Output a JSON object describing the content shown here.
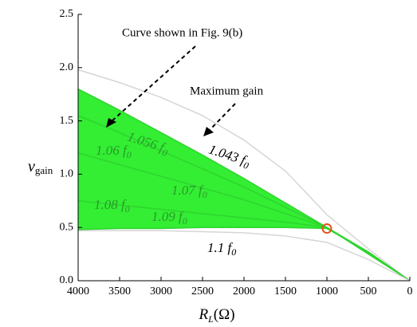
{
  "chart_data": {
    "type": "line",
    "xlabel": "R",
    "xlabel_sub": "L",
    "xlabel_unit": "(Ω)",
    "ylabel": "v",
    "ylabel_sub": "gain",
    "xlim": [
      4000,
      0
    ],
    "ylim": [
      0,
      2.5
    ],
    "xticks": [
      4000,
      3500,
      3000,
      2500,
      2000,
      1500,
      1000,
      500,
      0
    ],
    "yticks": [
      {
        "value": 0,
        "label": "0.0"
      },
      0.5,
      {
        "value": 1,
        "label": "1.0"
      },
      1.5,
      {
        "value": 2,
        "label": "2.0"
      },
      2.5
    ],
    "x": [
      4000,
      3500,
      3000,
      2500,
      2000,
      1500,
      1000,
      500,
      0
    ],
    "fill_color": "#33ee33",
    "series": [
      {
        "name": "1.043 f",
        "name_sub": "0",
        "color": "#d6d6d6",
        "values": [
          1.98,
          1.86,
          1.72,
          1.55,
          1.32,
          1.03,
          0.62,
          0.3,
          0
        ]
      },
      {
        "name": "1.056 f",
        "name_sub": "0",
        "color": "#2fd42f",
        "values": [
          1.8,
          1.6,
          1.39,
          1.18,
          0.96,
          0.73,
          0.5,
          0.25,
          0
        ]
      },
      {
        "name": "1.06 f",
        "name_sub": "0",
        "color": "#2fd42f",
        "values": [
          1.55,
          1.39,
          1.22,
          1.05,
          0.88,
          0.69,
          0.5,
          0.26,
          0
        ]
      },
      {
        "name": "1.07 f",
        "name_sub": "0",
        "color": "#2fd42f",
        "values": [
          1.2,
          1.09,
          0.98,
          0.87,
          0.76,
          0.63,
          0.5,
          0.26,
          0
        ]
      },
      {
        "name": "1.08 f",
        "name_sub": "0",
        "color": "#2fd42f",
        "values": [
          0.75,
          0.71,
          0.67,
          0.63,
          0.59,
          0.55,
          0.5,
          0.27,
          0
        ]
      },
      {
        "name": "1.09 f",
        "name_sub": "0",
        "color": "#2fd42f",
        "values": [
          0.48,
          0.49,
          0.49,
          0.5,
          0.5,
          0.5,
          0.49,
          0.27,
          0
        ]
      },
      {
        "name": "1.1 f",
        "name_sub": "0",
        "color": "#d6d6d6",
        "values": [
          0.47,
          0.47,
          0.47,
          0.46,
          0.45,
          0.42,
          0.36,
          0.2,
          0
        ]
      }
    ],
    "marker": {
      "x": 1000,
      "y": 0.49,
      "color": "#e8501a"
    },
    "annotations": [
      "Curve shown in Fig. 9(b)",
      "Maximum gain"
    ]
  }
}
